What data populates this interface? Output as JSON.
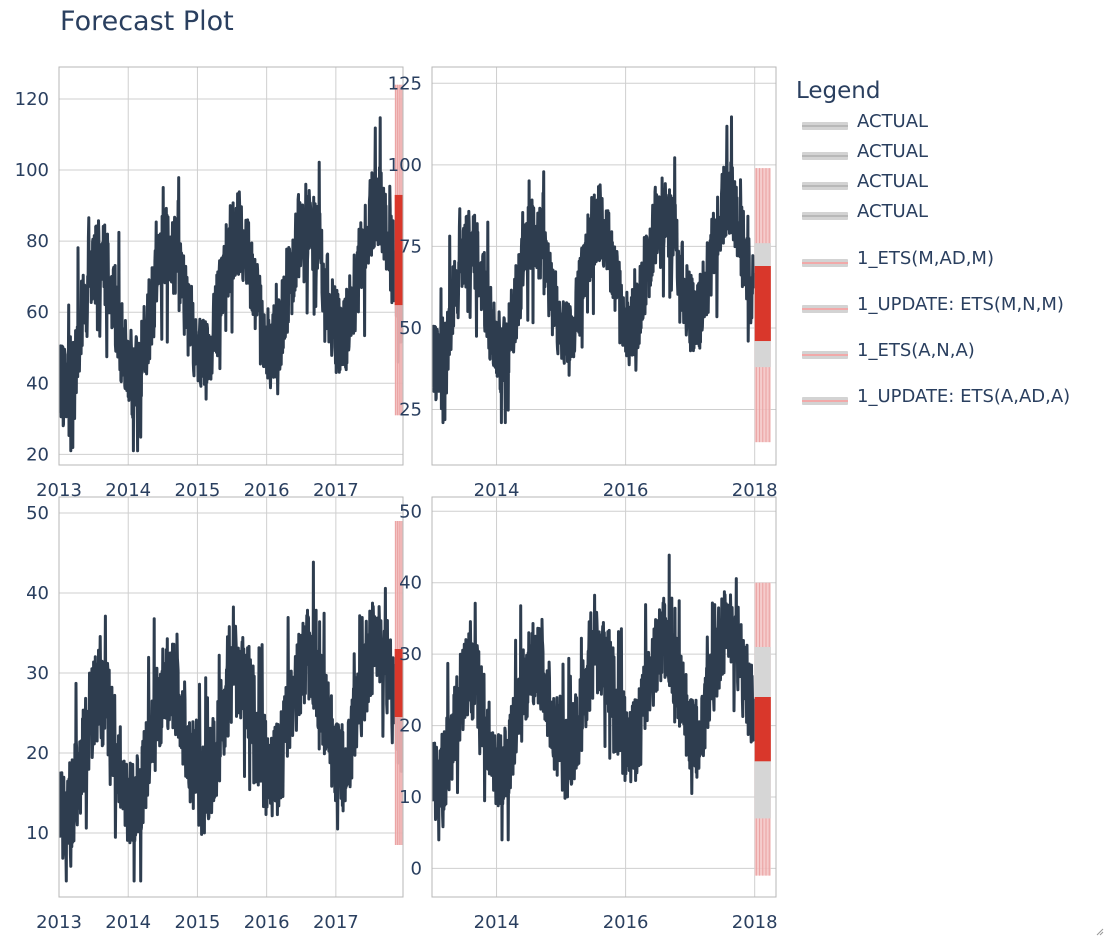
{
  "title": "Forecast Plot",
  "legend": {
    "title": "Legend",
    "items": [
      {
        "label": "ACTUAL",
        "swatch_fill": "#d3d3d3",
        "line_color": "#b8b8b8"
      },
      {
        "label": "ACTUAL",
        "swatch_fill": "#d3d3d3",
        "line_color": "#b8b8b8"
      },
      {
        "label": "ACTUAL",
        "swatch_fill": "#d3d3d3",
        "line_color": "#b8b8b8"
      },
      {
        "label": "ACTUAL",
        "swatch_fill": "#d3d3d3",
        "line_color": "#b8b8b8"
      },
      {
        "label": "1_ETS(M,AD,M)",
        "swatch_fill": "#d3d3d3",
        "line_color": "#f1a9a9"
      },
      {
        "label": "1_UPDATE: ETS(M,N,M)",
        "swatch_fill": "#d3d3d3",
        "line_color": "#f1a9a9"
      },
      {
        "label": "1_ETS(A,N,A)",
        "swatch_fill": "#d3d3d3",
        "line_color": "#f1a9a9"
      },
      {
        "label": "1_UPDATE: ETS(A,AD,A)",
        "swatch_fill": "#d3d3d3",
        "line_color": "#f1a9a9"
      }
    ]
  },
  "colors": {
    "actual": "#2e3d4f",
    "forecast": "#d9372b",
    "forecast_band": "#f3c3c3",
    "update_band": "#d6d6d6",
    "grid": "#cfcfcf",
    "axis_text": "#2a3f5f"
  },
  "chart_data": [
    {
      "type": "line",
      "panel": "top-left",
      "xlim": [
        2013.0,
        2017.97
      ],
      "xticks": [
        2013,
        2014,
        2015,
        2016,
        2017
      ],
      "xtick_labels": [
        "2013",
        "2014",
        "2015",
        "2016",
        "2017"
      ],
      "ylim": [
        17,
        129
      ],
      "yticks": [
        20,
        40,
        60,
        80,
        100,
        120
      ],
      "ytick_labels": [
        "20",
        "40",
        "60",
        "80",
        "100",
        "120"
      ],
      "actual": {
        "start": 2013.0,
        "end": 2017.99,
        "base": 56,
        "amp": 17,
        "peak_month": 7,
        "trend": 3.6,
        "noise": 12,
        "min": 21,
        "max": 126,
        "phase": 0.37
      },
      "forecast": {
        "start": 2017.85,
        "end": 2017.98,
        "pi_low": 31,
        "pi_high": 124,
        "low": 62,
        "high": 93
      }
    },
    {
      "type": "line",
      "panel": "top-right",
      "xlim": [
        2013.0,
        2018.33
      ],
      "xticks": [
        2014,
        2016,
        2018
      ],
      "xtick_labels": [
        "2014",
        "2016",
        "2018"
      ],
      "ylim": [
        8,
        130
      ],
      "yticks": [
        25,
        50,
        75,
        100,
        125
      ],
      "ytick_labels": [
        "25",
        "50",
        "75",
        "100",
        "125"
      ],
      "actual": {
        "start": 2013.0,
        "end": 2017.99,
        "base": 56,
        "amp": 17,
        "peak_month": 7,
        "trend": 3.6,
        "noise": 12,
        "min": 21,
        "max": 126,
        "phase": 0.37
      },
      "forecast": {
        "start": 2018.0,
        "end": 2018.25,
        "pi_low": 15,
        "pi_high": 99,
        "low": 46,
        "high": 69,
        "update_low": 38,
        "update_high": 76
      }
    },
    {
      "type": "line",
      "panel": "bottom-left",
      "xlim": [
        2013.0,
        2017.97
      ],
      "xticks": [
        2013,
        2014,
        2015,
        2016,
        2017
      ],
      "xtick_labels": [
        "2013",
        "2014",
        "2015",
        "2016",
        "2017"
      ],
      "ylim": [
        2,
        52
      ],
      "yticks": [
        10,
        20,
        30,
        40,
        50
      ],
      "ytick_labels": [
        "10",
        "20",
        "30",
        "40",
        "50"
      ],
      "actual": {
        "start": 2013.0,
        "end": 2017.99,
        "base": 19,
        "amp": 7,
        "peak_month": 7,
        "trend": 1.7,
        "noise": 6,
        "min": 4,
        "max": 50,
        "phase": 0.81
      },
      "forecast": {
        "start": 2017.85,
        "end": 2017.98,
        "pi_low": 8.5,
        "pi_high": 49,
        "low": 24.5,
        "high": 33
      }
    },
    {
      "type": "line",
      "panel": "bottom-right",
      "xlim": [
        2013.0,
        2018.33
      ],
      "xticks": [
        2014,
        2016,
        2018
      ],
      "xtick_labels": [
        "2014",
        "2016",
        "2018"
      ],
      "ylim": [
        -4,
        52
      ],
      "yticks": [
        0,
        10,
        20,
        30,
        40,
        50
      ],
      "ytick_labels": [
        "0",
        "10",
        "20",
        "30",
        "40",
        "50"
      ],
      "actual": {
        "start": 2013.0,
        "end": 2017.99,
        "base": 19,
        "amp": 7,
        "peak_month": 7,
        "trend": 1.7,
        "noise": 6,
        "min": 4,
        "max": 50,
        "phase": 0.81
      },
      "forecast": {
        "start": 2018.0,
        "end": 2018.25,
        "pi_low": -1,
        "pi_high": 40,
        "low": 15,
        "high": 24,
        "update_low": 7,
        "update_high": 31
      }
    }
  ]
}
